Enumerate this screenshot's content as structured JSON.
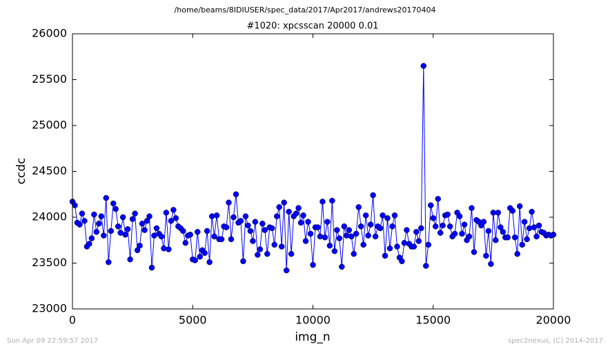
{
  "header": "/home/beams/8IDIUSER/spec_data/2017/Apr2017/andrews20170404",
  "footer_left": "Sun Apr 09 22:59:57 2017",
  "footer_right": "spec2nexus, (C) 2014-2017",
  "chart_data": {
    "type": "line",
    "title": "#1020: xpcsscan 20000 0.01",
    "x_label": "img_n",
    "y_label": "ccdc",
    "color": "#0000ff",
    "marker": "circle",
    "xlim": [
      0,
      20000
    ],
    "xticks": [
      0,
      5000,
      10000,
      15000,
      20000
    ],
    "ylim": [
      23000,
      26000
    ],
    "yticks": [
      23000,
      23500,
      24000,
      24500,
      25000,
      25500,
      26000
    ],
    "x": [
      0,
      100,
      200,
      300,
      400,
      500,
      600,
      700,
      800,
      900,
      1000,
      1100,
      1200,
      1300,
      1400,
      1500,
      1600,
      1700,
      1800,
      1900,
      2000,
      2100,
      2200,
      2300,
      2400,
      2500,
      2600,
      2700,
      2800,
      2900,
      3000,
      3100,
      3200,
      3300,
      3400,
      3500,
      3600,
      3700,
      3800,
      3900,
      4000,
      4100,
      4200,
      4300,
      4400,
      4500,
      4600,
      4700,
      4800,
      4900,
      5000,
      5100,
      5200,
      5300,
      5400,
      5500,
      5600,
      5700,
      5800,
      5900,
      6000,
      6100,
      6200,
      6300,
      6400,
      6500,
      6600,
      6700,
      6800,
      6900,
      7000,
      7100,
      7200,
      7300,
      7400,
      7500,
      7600,
      7700,
      7800,
      7900,
      8000,
      8100,
      8200,
      8300,
      8400,
      8500,
      8600,
      8700,
      8800,
      8900,
      9000,
      9100,
      9200,
      9300,
      9400,
      9500,
      9600,
      9700,
      9800,
      9900,
      10000,
      10100,
      10200,
      10300,
      10400,
      10500,
      10600,
      10700,
      10800,
      10900,
      11000,
      11100,
      11200,
      11300,
      11400,
      11500,
      11600,
      11700,
      11800,
      11900,
      12000,
      12100,
      12200,
      12300,
      12400,
      12500,
      12600,
      12700,
      12800,
      12900,
      13000,
      13100,
      13200,
      13300,
      13400,
      13500,
      13600,
      13700,
      13800,
      13900,
      14000,
      14100,
      14200,
      14300,
      14400,
      14500,
      14600,
      14700,
      14800,
      14900,
      15000,
      15100,
      15200,
      15300,
      15400,
      15500,
      15600,
      15700,
      15800,
      15900,
      16000,
      16100,
      16200,
      16300,
      16400,
      16500,
      16600,
      16700,
      16800,
      16900,
      17000,
      17100,
      17200,
      17300,
      17400,
      17500,
      17600,
      17700,
      17800,
      17900,
      18000,
      18100,
      18200,
      18300,
      18400,
      18500,
      18600,
      18700,
      18800,
      18900,
      19000,
      19100,
      19200,
      19300,
      19400,
      19500,
      19600,
      19700,
      19800,
      19900,
      20000
    ],
    "values": [
      24170,
      24130,
      23940,
      23920,
      24040,
      23960,
      23680,
      23710,
      23770,
      24030,
      23840,
      23930,
      24010,
      23800,
      24210,
      23510,
      23850,
      24150,
      24090,
      23900,
      23830,
      24000,
      23810,
      23870,
      23540,
      23980,
      24040,
      23640,
      23690,
      23930,
      23860,
      23960,
      24010,
      23450,
      23800,
      23880,
      23820,
      23790,
      23660,
      24050,
      23650,
      23960,
      24080,
      23990,
      23900,
      23880,
      23850,
      23720,
      23800,
      23810,
      23540,
      23530,
      23840,
      23570,
      23640,
      23610,
      23850,
      23510,
      24010,
      23790,
      24020,
      23760,
      23760,
      23900,
      23890,
      24160,
      23760,
      24000,
      24250,
      23940,
      23960,
      23520,
      24010,
      23910,
      23850,
      23740,
      23950,
      23590,
      23650,
      23930,
      23860,
      23600,
      23890,
      23880,
      23700,
      24010,
      24110,
      23680,
      24160,
      23420,
      24060,
      23600,
      24010,
      24040,
      24100,
      23940,
      24020,
      23740,
      23950,
      23820,
      23480,
      23890,
      23890,
      23790,
      24170,
      23780,
      23950,
      23690,
      24180,
      23630,
      23860,
      23770,
      23460,
      23900,
      23800,
      23860,
      23790,
      23600,
      23820,
      24110,
      23900,
      23700,
      24020,
      23800,
      23920,
      24240,
      23790,
      23900,
      23880,
      24020,
      23580,
      23990,
      23660,
      23900,
      24020,
      23680,
      23560,
      23520,
      23720,
      23860,
      23710,
      23680,
      23680,
      23840,
      23740,
      23880,
      25650,
      23470,
      23700,
      24130,
      23990,
      23900,
      24200,
      23830,
      23910,
      24020,
      24030,
      23900,
      23790,
      23820,
      24050,
      24010,
      23820,
      23920,
      23750,
      23790,
      24100,
      23620,
      23970,
      23950,
      23910,
      23950,
      23580,
      23850,
      23490,
      24050,
      23750,
      24050,
      23890,
      23840,
      23780,
      23780,
      24100,
      24070,
      23780,
      23600,
      24120,
      23700,
      23950,
      23760,
      23880,
      24060,
      23890,
      23790,
      23910,
      23840,
      23830,
      23800,
      23810,
      23800,
      23810
    ]
  }
}
